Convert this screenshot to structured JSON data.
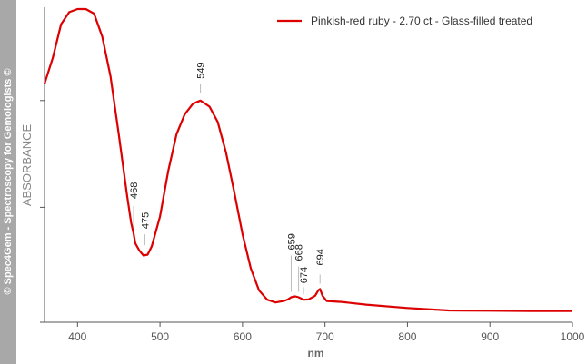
{
  "watermark": "© Spec4Gem - Spectroscopy for Gemologists ©",
  "chart_data": {
    "type": "line",
    "xlabel": "nm",
    "ylabel": "ABSORBANCE",
    "xlim": [
      360,
      1000
    ],
    "ylim": [
      0,
      1
    ],
    "x_ticks": [
      400,
      500,
      600,
      700,
      800,
      900,
      1000
    ],
    "y_ticks": [
      0,
      0.35,
      0.7
    ],
    "y_tick_labels_shown": false,
    "grid": false,
    "legend_position": "top-right",
    "series": [
      {
        "name": "Pinkish-red ruby - 2.70 ct - Glass-filled treated",
        "color": "#dd0000",
        "points": [
          [
            360,
            0.755
          ],
          [
            370,
            0.84
          ],
          [
            380,
            0.95
          ],
          [
            390,
            0.99
          ],
          [
            400,
            1.0
          ],
          [
            410,
            1.0
          ],
          [
            420,
            0.985
          ],
          [
            430,
            0.91
          ],
          [
            440,
            0.78
          ],
          [
            450,
            0.59
          ],
          [
            460,
            0.39
          ],
          [
            465,
            0.3
          ],
          [
            468,
            0.265
          ],
          [
            470,
            0.232
          ],
          [
            475,
            0.208
          ],
          [
            480,
            0.192
          ],
          [
            485,
            0.195
          ],
          [
            490,
            0.222
          ],
          [
            500,
            0.32
          ],
          [
            510,
            0.47
          ],
          [
            520,
            0.59
          ],
          [
            530,
            0.655
          ],
          [
            540,
            0.69
          ],
          [
            549,
            0.7
          ],
          [
            560,
            0.68
          ],
          [
            570,
            0.63
          ],
          [
            580,
            0.53
          ],
          [
            590,
            0.4
          ],
          [
            600,
            0.262
          ],
          [
            610,
            0.15
          ],
          [
            620,
            0.078
          ],
          [
            630,
            0.047
          ],
          [
            640,
            0.038
          ],
          [
            650,
            0.043
          ],
          [
            655,
            0.048
          ],
          [
            659,
            0.055
          ],
          [
            664,
            0.058
          ],
          [
            668,
            0.055
          ],
          [
            674,
            0.047
          ],
          [
            680,
            0.048
          ],
          [
            688,
            0.06
          ],
          [
            692,
            0.078
          ],
          [
            694,
            0.082
          ],
          [
            697,
            0.06
          ],
          [
            702,
            0.043
          ],
          [
            720,
            0.04
          ],
          [
            750,
            0.031
          ],
          [
            800,
            0.02
          ],
          [
            850,
            0.012
          ],
          [
            900,
            0.011
          ],
          [
            950,
            0.01
          ],
          [
            1000,
            0.01
          ]
        ]
      }
    ],
    "annotations": [
      {
        "label": "468",
        "x": 468,
        "y": 0.265
      },
      {
        "label": "475",
        "x": 475,
        "y": 0.208
      },
      {
        "label": "549",
        "x": 549,
        "y": 0.7
      },
      {
        "label": "659",
        "x": 659,
        "y": 0.055
      },
      {
        "label": "668",
        "x": 668,
        "y": 0.055
      },
      {
        "label": "674",
        "x": 674,
        "y": 0.047
      },
      {
        "label": "694",
        "x": 694,
        "y": 0.082
      }
    ]
  }
}
